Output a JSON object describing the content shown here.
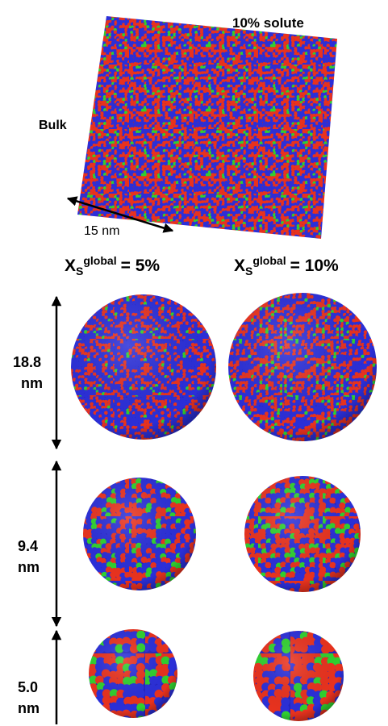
{
  "header": {
    "title": "10% solute",
    "bulk_label": "Bulk",
    "scale_label": "15 nm"
  },
  "columns": [
    {
      "base": "X",
      "sub": "S",
      "sup": "global",
      "rest": "= 5%"
    },
    {
      "base": "X",
      "sub": "S",
      "sup": "global",
      "rest": "= 10%"
    }
  ],
  "rows": [
    {
      "size": "18.8",
      "unit": "nm"
    },
    {
      "size": "9.4",
      "unit": "nm"
    },
    {
      "size": "5.0",
      "unit": "nm"
    }
  ]
}
